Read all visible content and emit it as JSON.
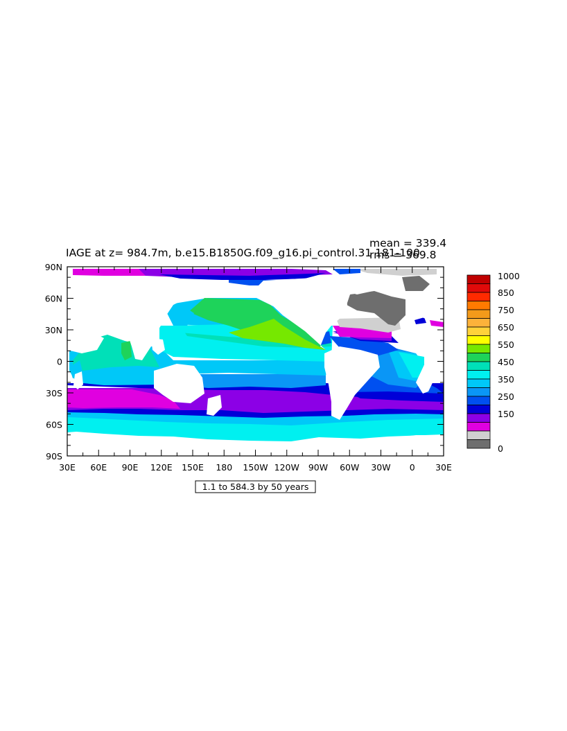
{
  "plot": {
    "title": "IAGE at z= 984.7m, b.e15.B1850G.f09_g16.pi_control.31 181-100",
    "mean_label": "mean = 339.4",
    "rms_label": "rms = 369.8",
    "subtitle_box": "1.1 to 584.3 by 50 years"
  },
  "axes": {
    "x_ticks": [
      "30E",
      "60E",
      "90E",
      "120E",
      "150E",
      "180",
      "150W",
      "120W",
      "90W",
      "60W",
      "30W",
      "0",
      "30E"
    ],
    "y_ticks": [
      "90N",
      "60N",
      "30N",
      "0",
      "30S",
      "60S",
      "90S"
    ]
  },
  "colorbar": {
    "labels": [
      "1000",
      "850",
      "750",
      "650",
      "550",
      "450",
      "350",
      "250",
      "150",
      "0"
    ],
    "colors": [
      "#c00000",
      "#e00a0a",
      "#ff2a00",
      "#ff7a00",
      "#f39a1a",
      "#fcb23a",
      "#ffd23a",
      "#ffff00",
      "#76e800",
      "#1ed35a",
      "#00e0b8",
      "#00f0f0",
      "#00c8f8",
      "#0a96f6",
      "#0050f0",
      "#0000d8",
      "#8c00e6",
      "#e000e0",
      "#d0d0d0",
      "#6e6e6e"
    ]
  },
  "map": {
    "palette": {
      "magenta": "#e000e0",
      "purple": "#8c00e6",
      "blue": "#0000d8",
      "royal": "#0050f0",
      "azure": "#0a96f6",
      "sky": "#00c8f8",
      "cyan": "#00f0f0",
      "aqua": "#00e0b8",
      "green": "#1ed35a",
      "lime": "#76e800",
      "lightgray": "#d0d0d0",
      "darkgray": "#6e6e6e",
      "land": "#ffffff"
    }
  }
}
